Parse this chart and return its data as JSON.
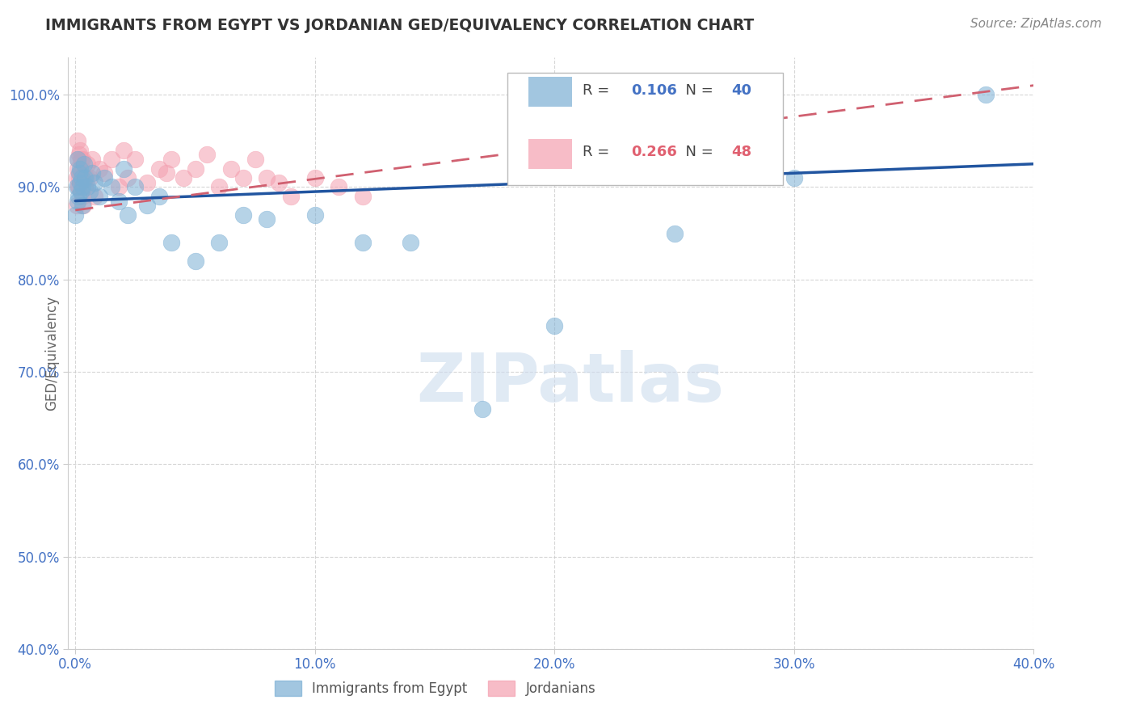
{
  "title": "IMMIGRANTS FROM EGYPT VS JORDANIAN GED/EQUIVALENCY CORRELATION CHART",
  "source": "Source: ZipAtlas.com",
  "xlabel_tick_vals": [
    0.0,
    10.0,
    20.0,
    30.0,
    40.0
  ],
  "ylabel_tick_vals": [
    40.0,
    50.0,
    60.0,
    70.0,
    80.0,
    90.0,
    100.0
  ],
  "xlim": [
    -0.3,
    40.0
  ],
  "ylim": [
    40.0,
    104.0
  ],
  "egypt_color": "#7bafd4",
  "jordan_color": "#f4a0b0",
  "egypt_line_color": "#2155a0",
  "jordan_line_color": "#d06070",
  "egypt_R": 0.106,
  "egypt_N": 40,
  "jordan_R": 0.266,
  "jordan_N": 48,
  "egypt_x": [
    0.05,
    0.08,
    0.1,
    0.12,
    0.15,
    0.18,
    0.2,
    0.22,
    0.25,
    0.28,
    0.3,
    0.35,
    0.4,
    0.5,
    0.6,
    0.7,
    0.8,
    1.0,
    1.2,
    1.5,
    1.8,
    2.0,
    2.2,
    2.5,
    3.0,
    3.5,
    4.0,
    5.0,
    6.0,
    7.0,
    8.0,
    10.0,
    12.0,
    14.0,
    17.0,
    20.0,
    25.0,
    30.0,
    38.0,
    0.0
  ],
  "egypt_y": [
    90.0,
    88.5,
    93.0,
    89.0,
    91.5,
    90.5,
    92.0,
    89.5,
    91.0,
    90.0,
    88.0,
    92.5,
    91.0,
    90.0,
    89.5,
    91.5,
    90.5,
    89.0,
    91.0,
    90.0,
    88.5,
    92.0,
    87.0,
    90.0,
    88.0,
    89.0,
    84.0,
    82.0,
    84.0,
    87.0,
    86.5,
    87.0,
    84.0,
    84.0,
    66.0,
    75.0,
    85.0,
    91.0,
    100.0,
    87.0
  ],
  "jordan_x": [
    0.05,
    0.08,
    0.1,
    0.12,
    0.15,
    0.18,
    0.2,
    0.22,
    0.25,
    0.28,
    0.3,
    0.35,
    0.4,
    0.5,
    0.6,
    0.7,
    0.8,
    1.0,
    1.2,
    1.5,
    1.8,
    2.0,
    2.2,
    2.5,
    3.0,
    3.5,
    3.8,
    4.0,
    4.5,
    5.0,
    5.5,
    6.0,
    6.5,
    7.0,
    7.5,
    8.0,
    8.5,
    9.0,
    10.0,
    11.0,
    12.0,
    0.06,
    0.09,
    0.13,
    0.16,
    0.23,
    0.32,
    0.45
  ],
  "jordan_y": [
    91.0,
    93.0,
    95.0,
    90.0,
    93.5,
    91.5,
    94.0,
    90.5,
    92.0,
    89.0,
    93.0,
    91.0,
    90.0,
    92.5,
    91.0,
    93.0,
    89.0,
    92.0,
    91.5,
    93.0,
    90.0,
    94.0,
    91.0,
    93.0,
    90.5,
    92.0,
    91.5,
    93.0,
    91.0,
    92.0,
    93.5,
    90.0,
    92.0,
    91.0,
    93.0,
    91.0,
    90.5,
    89.0,
    91.0,
    90.0,
    89.0,
    88.0,
    92.0,
    90.0,
    91.0,
    93.0,
    88.0,
    91.0
  ],
  "watermark": "ZIPatlas",
  "background_color": "#ffffff",
  "grid_color": "#cccccc",
  "title_color": "#333333",
  "tick_label_color": "#4472c4",
  "ylabel_text": "GED/Equivalency",
  "legend1_label": "Immigrants from Egypt",
  "legend2_label": "Jordanians"
}
